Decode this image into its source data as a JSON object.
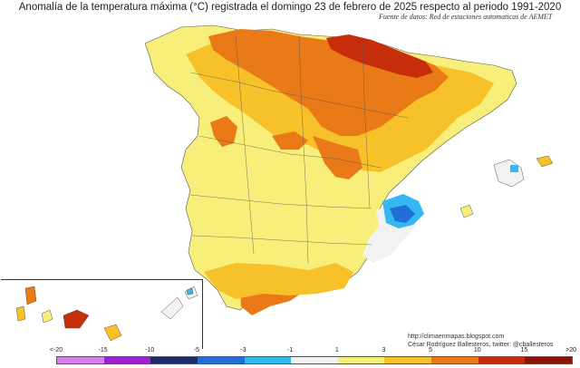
{
  "title": "Anomalía de la temperatura máxima (°C) registrada el domingo 23 de febrero de 2025 respecto al periodo 1991-2020",
  "source": "Fuente de datos: Red de estaciones automaticas de AEMET",
  "credit": {
    "blog": "http://climaenmapas.blogspot.com",
    "author": "César Rodríguez Ballesteros, twitter: @cballesteros"
  },
  "legend": {
    "ticks": [
      "<-20",
      "-15",
      "-10",
      "-5",
      "-3",
      "-1",
      "1",
      "3",
      "5",
      "10",
      "15",
      ">20"
    ],
    "colors": [
      "#d97ef0",
      "#a020d0",
      "#1e2a6e",
      "#1f6fd6",
      "#35b8f0",
      "#f2f2f2",
      "#f7ef7a",
      "#f7c12a",
      "#ea7a18",
      "#c62d0a",
      "#8a1408"
    ]
  },
  "map_regions": {
    "base": "Spain mainland",
    "warm_core": "Northern interior (Castilla y León, País Vasco, Navarra, La Rioja, Aragón)",
    "cold_spot": "Valencia coast",
    "neutral_zone": "Eastern coast (Murcia, Alicante)",
    "islands": [
      "Baleares",
      "Canarias"
    ]
  }
}
